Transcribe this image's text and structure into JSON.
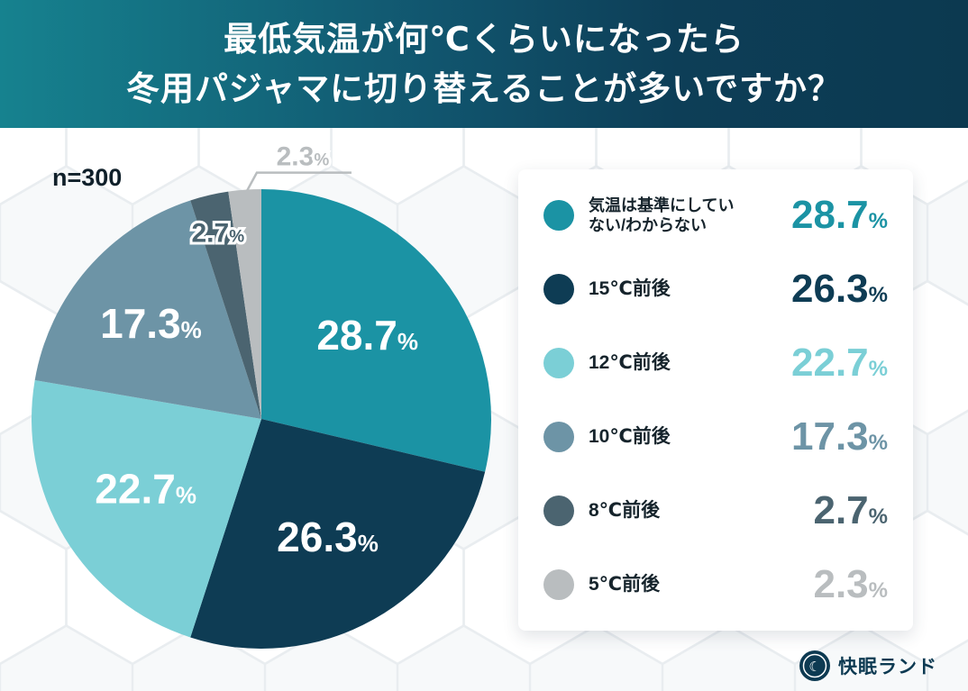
{
  "header": {
    "title_line1": "最低気温が何℃くらいになったら",
    "title_line2": "冬用パジャマに切り替えることが多いですか？"
  },
  "sample_label": "n=300",
  "chart_data": {
    "type": "pie",
    "title": "最低気温が何℃くらいになったら冬用パジャマに切り替えることが多いですか？",
    "sample_size": 300,
    "categories": [
      "気温は基準にしていない/わからない",
      "15℃前後",
      "12℃前後",
      "10℃前後",
      "8℃前後",
      "5℃前後"
    ],
    "values": [
      28.7,
      26.3,
      22.7,
      17.3,
      2.7,
      2.3
    ],
    "colors": [
      "#1b93a4",
      "#0e3c54",
      "#7bcfd6",
      "#6d94a6",
      "#4b6470",
      "#b9bdbf"
    ],
    "unit": "%",
    "start_angle_deg": 0,
    "direction": "clockwise",
    "legend_position": "right",
    "label_placement": [
      "inside",
      "inside",
      "inside",
      "inside",
      "outside-near",
      "outside-leader"
    ]
  },
  "footer": {
    "brand": "快眠ランド"
  }
}
